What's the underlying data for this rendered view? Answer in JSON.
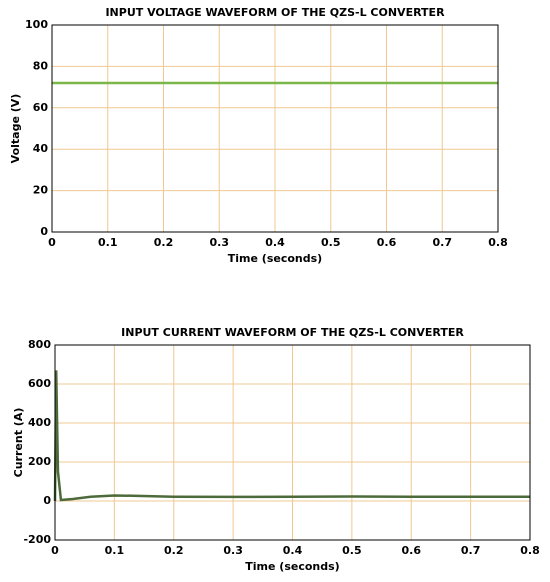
{
  "chart_data": [
    {
      "type": "line",
      "title": "INPUT VOLTAGE WAVEFORM OF THE QZS-L CONVERTER",
      "x_label": "Time (seconds)",
      "y_label": "Voltage (V)",
      "x": [
        0,
        0.8
      ],
      "series": [
        {
          "name": "Voltage",
          "color": "#7ab648",
          "values": [
            72,
            72
          ]
        }
      ],
      "xlim": [
        0,
        0.8
      ],
      "xticks": [
        0,
        0.1,
        0.2,
        0.3,
        0.4,
        0.5,
        0.6,
        0.7,
        0.8
      ],
      "ylim": [
        0,
        100
      ],
      "yticks": [
        0,
        20,
        40,
        60,
        80,
        100
      ],
      "grid": true
    },
    {
      "type": "line",
      "title": "INPUT CURRENT WAVEFORM OF THE QZS-L CONVERTER",
      "x_label": "Time (seconds)",
      "y_label": "Current (A)",
      "x": [
        0,
        0.002,
        0.005,
        0.01,
        0.03,
        0.06,
        0.1,
        0.13,
        0.2,
        0.3,
        0.4,
        0.5,
        0.6,
        0.7,
        0.8
      ],
      "series": [
        {
          "name": "Current",
          "color": "#4d6b3a",
          "values": [
            0,
            670,
            150,
            5,
            10,
            22,
            28,
            27,
            22,
            21,
            22,
            23,
            22,
            22,
            22
          ]
        }
      ],
      "xlim": [
        0,
        0.8
      ],
      "xticks": [
        0,
        0.1,
        0.2,
        0.3,
        0.4,
        0.5,
        0.6,
        0.7,
        0.8
      ],
      "ylim": [
        -200,
        800
      ],
      "yticks": [
        -200,
        0,
        200,
        400,
        600,
        800
      ],
      "grid": true
    }
  ]
}
